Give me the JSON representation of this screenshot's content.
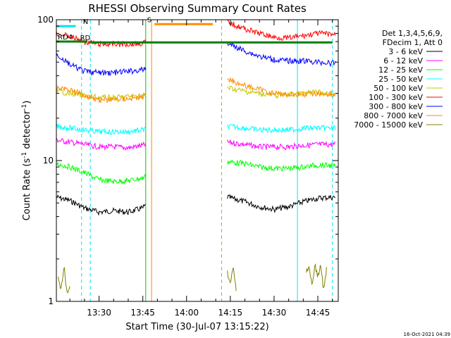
{
  "chart_data": {
    "type": "line",
    "title": "RHESSI Observing Summary Count Rates",
    "xlabel": "Start Time (30-Jul-07 13:15:22)",
    "ylabel_base": "Count Rate (s",
    "ylabel_sup": "-1",
    "ylabel_tail": " detector",
    "ylabel_end": ")",
    "yscale": "log",
    "ylim": [
      1,
      100
    ],
    "ytick_labels": [
      "1",
      "10",
      "100"
    ],
    "xlim": [
      "13:15:22",
      "14:52:00"
    ],
    "xticks": [
      "13:30",
      "13:45",
      "14:00",
      "14:15",
      "14:30",
      "14:45"
    ],
    "timestamp": "16-Oct-2021 04:39",
    "legend_header": [
      "Det 1,3,4,5,6,9,",
      "FDecim 1, Att 0"
    ],
    "series": [
      {
        "name": "3 - 6 keV",
        "color": "#000000",
        "segments": [
          {
            "x": [
              "13:15:22",
              "13:20",
              "13:25",
              "13:30",
              "13:35",
              "13:40",
              "13:45",
              "13:46"
            ],
            "y": [
              5.5,
              5.2,
              4.6,
              4.3,
              4.4,
              4.3,
              4.6,
              4.8
            ]
          },
          {
            "x": [
              "14:14",
              "14:20",
              "14:25",
              "14:30",
              "14:35",
              "14:40",
              "14:45",
              "14:50",
              "14:51"
            ],
            "y": [
              5.5,
              5.1,
              4.7,
              4.5,
              4.7,
              5.1,
              5.4,
              5.5,
              5.5
            ]
          }
        ]
      },
      {
        "name": "6 - 12 keV",
        "color": "#ff00ff",
        "segments": [
          {
            "x": [
              "13:15:22",
              "13:20",
              "13:25",
              "13:30",
              "13:35",
              "13:40",
              "13:45",
              "13:46"
            ],
            "y": [
              14,
              13.5,
              13,
              12.5,
              12.5,
              12.3,
              12.8,
              13
            ]
          },
          {
            "x": [
              "14:14",
              "14:20",
              "14:25",
              "14:30",
              "14:35",
              "14:40",
              "14:45",
              "14:50",
              "14:51"
            ],
            "y": [
              13.5,
              13,
              12.5,
              12.5,
              12.5,
              12.8,
              13,
              13,
              13
            ]
          }
        ]
      },
      {
        "name": "12 - 25 keV",
        "color": "#00ff00",
        "segments": [
          {
            "x": [
              "13:15:22",
              "13:20",
              "13:25",
              "13:30",
              "13:35",
              "13:40",
              "13:45",
              "13:46"
            ],
            "y": [
              9.5,
              9,
              8.2,
              7.3,
              7.1,
              7.2,
              7.5,
              7.8
            ]
          },
          {
            "x": [
              "14:14",
              "14:20",
              "14:25",
              "14:30",
              "14:35",
              "14:40",
              "14:45",
              "14:50",
              "14:51"
            ],
            "y": [
              9.8,
              9.5,
              9,
              8.8,
              8.8,
              9,
              9.3,
              9.2,
              9
            ]
          }
        ]
      },
      {
        "name": "25 - 50 keV",
        "color": "#00ffff",
        "segments": [
          {
            "x": [
              "13:15:22",
              "13:20",
              "13:25",
              "13:30",
              "13:35",
              "13:40",
              "13:45",
              "13:46"
            ],
            "y": [
              17.5,
              17,
              16.5,
              16,
              16,
              16,
              16.5,
              16.5
            ]
          },
          {
            "x": [
              "14:14",
              "14:20",
              "14:25",
              "14:30",
              "14:35",
              "14:40",
              "14:45",
              "14:50",
              "14:51"
            ],
            "y": [
              17.5,
              17,
              16.5,
              16.5,
              16.5,
              17,
              17,
              17,
              17
            ]
          }
        ]
      },
      {
        "name": "50 - 100 keV",
        "color": "#c8c800",
        "segments": [
          {
            "x": [
              "13:15:22",
              "13:20",
              "13:25",
              "13:30",
              "13:35",
              "13:40",
              "13:45",
              "13:46"
            ],
            "y": [
              31,
              30,
              29,
              28,
              28,
              28.5,
              29,
              29
            ]
          },
          {
            "x": [
              "14:14",
              "14:20",
              "14:25",
              "14:30",
              "14:35",
              "14:40",
              "14:45",
              "14:50",
              "14:51"
            ],
            "y": [
              33,
              31,
              30,
              29,
              29.5,
              30,
              30.5,
              30,
              30
            ]
          }
        ]
      },
      {
        "name": "100 - 300 keV",
        "color": "#ff0000",
        "segments": [
          {
            "x": [
              "13:15:22",
              "13:20",
              "13:25",
              "13:30",
              "13:35",
              "13:40",
              "13:45",
              "13:46"
            ],
            "y": [
              80,
              76,
              70,
              67,
              67,
              67,
              68,
              70
            ]
          },
          {
            "x": [
              "14:14",
              "14:20",
              "14:25",
              "14:30",
              "14:35",
              "14:40",
              "14:45",
              "14:50",
              "14:51"
            ],
            "y": [
              96,
              86,
              80,
              75,
              74,
              77,
              80,
              79,
              78
            ]
          }
        ]
      },
      {
        "name": "300 - 800 keV",
        "color": "#0000ff",
        "segments": [
          {
            "x": [
              "13:15:22",
              "13:20",
              "13:25",
              "13:30",
              "13:35",
              "13:40",
              "13:45",
              "13:46"
            ],
            "y": [
              57,
              48,
              43,
              42,
              42,
              43,
              44,
              45
            ]
          },
          {
            "x": [
              "14:14",
              "14:20",
              "14:25",
              "14:30",
              "14:35",
              "14:40",
              "14:45",
              "14:50",
              "14:51"
            ],
            "y": [
              68,
              60,
              55,
              52,
              51,
              51,
              50,
              49,
              49
            ]
          }
        ]
      },
      {
        "name": "800 - 7000 keV",
        "color": "#ff8c00",
        "segments": [
          {
            "x": [
              "13:15:22",
              "13:20",
              "13:25",
              "13:30",
              "13:35",
              "13:40",
              "13:45",
              "13:46"
            ],
            "y": [
              33,
              32,
              29,
              27,
              27,
              27.5,
              28,
              29
            ]
          },
          {
            "x": [
              "14:14",
              "14:20",
              "14:25",
              "14:30",
              "14:35",
              "14:40",
              "14:45",
              "14:50",
              "14:51"
            ],
            "y": [
              38,
              34,
              32,
              30,
              29.5,
              29.5,
              30,
              29.5,
              29
            ]
          }
        ]
      },
      {
        "name": "7000 - 15000 keV",
        "color": "#808000",
        "segments": [
          {
            "x": [
              "13:16",
              "13:17",
              "13:18",
              "13:19",
              "13:20"
            ],
            "y": [
              1.5,
              1.2,
              1.8,
              1.1,
              1.3
            ]
          },
          {
            "x": [
              "14:14",
              "14:15",
              "14:16",
              "14:17"
            ],
            "y": [
              1.6,
              1.3,
              1.8,
              1.2
            ]
          },
          {
            "x": [
              "14:41",
              "14:42",
              "14:43",
              "14:44",
              "14:45",
              "14:46",
              "14:47",
              "14:48"
            ],
            "y": [
              1.6,
              1.8,
              1.3,
              1.8,
              1.5,
              1.8,
              1.2,
              1.7
            ]
          }
        ]
      }
    ],
    "flags": [
      {
        "label": "N",
        "color": "#00e5ee",
        "y": 90,
        "start": "13:15:22",
        "end": "13:22",
        "label_at": "13:24"
      },
      {
        "label": "RD",
        "color": "#008000",
        "y": 69,
        "start": "13:27",
        "end": "14:50",
        "label_at": "13:23"
      },
      {
        "label": "RD4",
        "color": "#008000",
        "y": 70,
        "start": "13:15:22",
        "end": "13:26",
        "label_at": "13:15:22"
      },
      {
        "label": "S",
        "color": "#ff8c00",
        "y": 93,
        "start": "13:49",
        "end": "14:09",
        "label_at": "13:46"
      }
    ],
    "vlines": [
      {
        "t": "13:15:22",
        "color": "#00e5ee",
        "dash": false
      },
      {
        "t": "13:24",
        "color": "#00e5ee",
        "dash": true
      },
      {
        "t": "13:27",
        "color": "#00e5ee",
        "dash": true
      },
      {
        "t": "13:46",
        "color": "#00cc00",
        "dash": false
      },
      {
        "t": "13:48",
        "color": "#ff8c00",
        "dash": false
      },
      {
        "t": "14:12",
        "color": "#ff8c00",
        "dash": true
      },
      {
        "t": "14:38",
        "color": "#00e5ee",
        "dash": false
      },
      {
        "t": "14:50",
        "color": "#00e5ee",
        "dash": true
      }
    ]
  }
}
